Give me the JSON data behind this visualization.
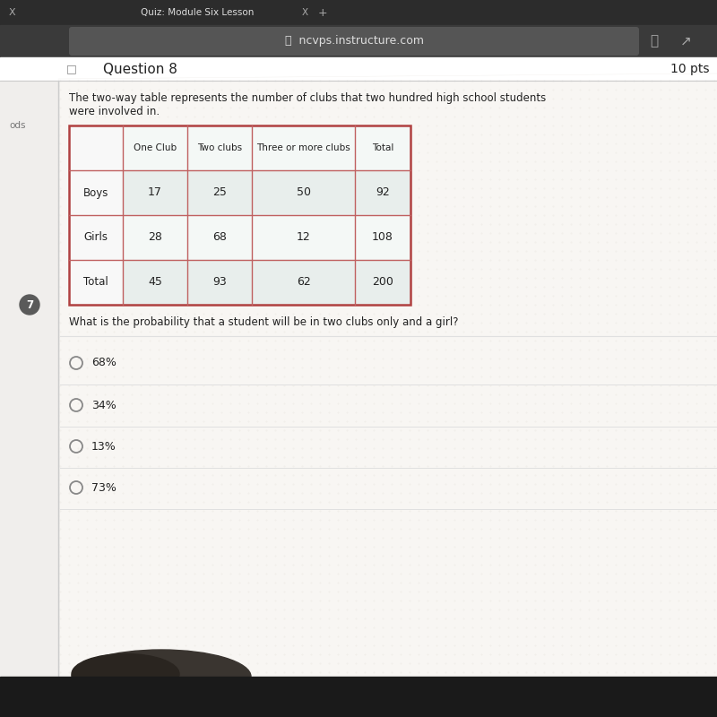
{
  "browser_tab_text": "Quiz: Module Six Lesson  X  +",
  "url_text": "ncvps.instructure.com",
  "question_label": "Question 8",
  "points": "10 pts",
  "question_number_badge": "7",
  "desc_line1": "The two-way table represents the number of clubs that two hundred high school students",
  "desc_line2": "were involved in.",
  "table_headers": [
    "",
    "One Club",
    "Two clubs",
    "Three or more clubs",
    "Total"
  ],
  "table_rows": [
    [
      "Boys",
      "17",
      "25",
      "50",
      "92"
    ],
    [
      "Girls",
      "28",
      "68",
      "12",
      "108"
    ],
    [
      "Total",
      "45",
      "93",
      "62",
      "200"
    ]
  ],
  "question_text": "What is the probability that a student will be in two clubs only and a girl?",
  "choices": [
    "68%",
    "34%",
    "13%",
    "73%"
  ],
  "tab_bar_color": "#2c2c2c",
  "url_bar_color": "#3a3a3a",
  "url_pill_color": "#555555",
  "content_bg": "#f0eeec",
  "white_panel": "#ffffff",
  "table_border": "#b04040",
  "table_inner": "#c06060",
  "cell_alt_color": "#e8f0ee",
  "text_dark": "#222222",
  "text_medium": "#444444",
  "sidebar_left_color": "#c8c5c0",
  "header_separator": "#dddddd",
  "choice_separator": "#e0e0e0",
  "radio_color": "#888888",
  "bottom_bar_color": "#1a1a1a",
  "question_header_bg": "#ffffff"
}
